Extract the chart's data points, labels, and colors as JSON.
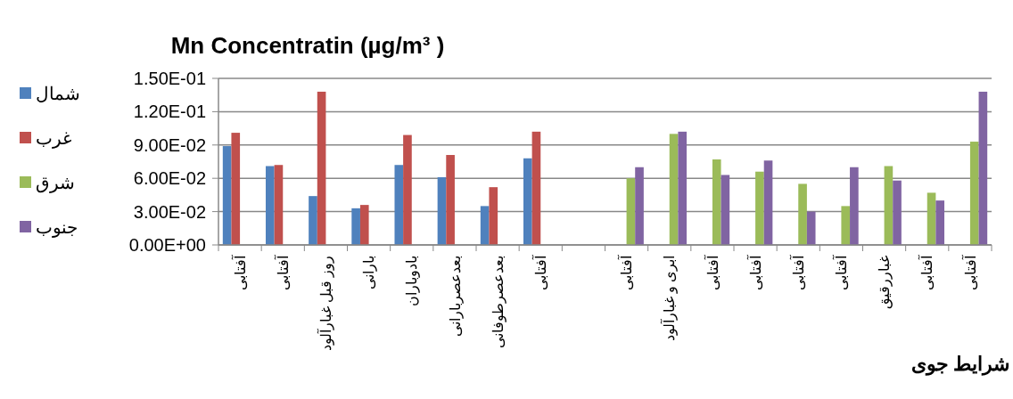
{
  "chart_data": {
    "type": "bar",
    "title": "Mn Concentratin (µg/m³ )",
    "xlabel": "شرایط جوی",
    "categories": [
      "آفتابی",
      "آفتابی",
      "روز قبل غبارآلود",
      "بارانی",
      "بادوباران",
      "بعدعصربارانی",
      "بعدعصرطوفانی",
      "آفتابی",
      null,
      "آفتابی",
      "ابری و غبارآلود",
      "آفتابی",
      "آفتابی",
      "آفتابی",
      "آفتابی",
      "غباررقیق",
      "آفتابی",
      "آفتابی"
    ],
    "series": [
      {
        "name": "شمال",
        "color": "#4f81bd",
        "values": [
          0.089,
          0.071,
          0.044,
          0.033,
          0.072,
          0.061,
          0.035,
          0.078,
          null,
          null,
          null,
          null,
          null,
          null,
          null,
          null,
          null,
          null
        ]
      },
      {
        "name": "غرب",
        "color": "#c0504d",
        "values": [
          0.101,
          0.072,
          0.138,
          0.036,
          0.099,
          0.081,
          0.052,
          0.102,
          null,
          null,
          null,
          null,
          null,
          null,
          null,
          null,
          null,
          null
        ]
      },
      {
        "name": "شرق",
        "color": "#9bbb59",
        "values": [
          null,
          null,
          null,
          null,
          null,
          null,
          null,
          null,
          null,
          0.06,
          0.1,
          0.077,
          0.066,
          0.055,
          0.035,
          0.071,
          0.047,
          0.093
        ]
      },
      {
        "name": "جنوب",
        "color": "#8064a2",
        "values": [
          null,
          null,
          null,
          null,
          null,
          null,
          null,
          null,
          null,
          0.07,
          0.102,
          0.063,
          0.076,
          0.03,
          0.07,
          0.058,
          0.04,
          0.138
        ]
      }
    ],
    "ylim": [
      0,
      0.15
    ],
    "yticks": [
      {
        "value": 0,
        "label": "0.00E+00"
      },
      {
        "value": 0.03,
        "label": "3.00E-02"
      },
      {
        "value": 0.06,
        "label": "6.00E-02"
      },
      {
        "value": 0.09,
        "label": "9.00E-02"
      },
      {
        "value": 0.12,
        "label": "1.20E-01"
      },
      {
        "value": 0.15,
        "label": "1.50E-01"
      }
    ],
    "grid": "y",
    "legend": "left"
  }
}
